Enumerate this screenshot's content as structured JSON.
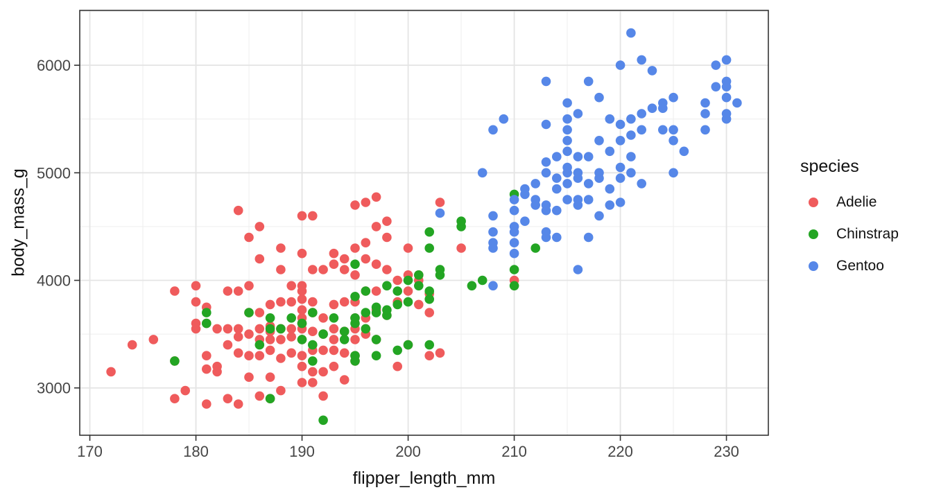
{
  "chart_data": {
    "type": "scatter",
    "xlabel": "flipper_length_mm",
    "ylabel": "body_mass_g",
    "xlim": [
      169.05,
      233.95
    ],
    "ylim": [
      2560,
      6510
    ],
    "x_ticks": [
      170,
      180,
      190,
      200,
      210,
      220,
      230
    ],
    "x_minor_ticks": [
      175,
      185,
      195,
      205,
      215,
      225
    ],
    "y_ticks": [
      3000,
      4000,
      5000,
      6000
    ],
    "y_minor_ticks": [
      3500,
      4500,
      5500,
      6500
    ],
    "grid": "on",
    "legend": {
      "title": "species",
      "position": "right"
    },
    "style": {
      "panel_background": "#ffffff",
      "panel_border": "#333333",
      "grid_major": "#e4e4e4",
      "grid_minor": "#f0f0f0",
      "tick_color": "#333333",
      "tick_label_color": "#454545",
      "axis_title_color": "#111111",
      "point_radius": 6.8
    },
    "series": [
      {
        "name": "Adelie",
        "color": "#EF5B5C",
        "points": [
          [
            172,
            3150
          ],
          [
            174,
            3400
          ],
          [
            176,
            3450
          ],
          [
            178,
            2900
          ],
          [
            178,
            3250
          ],
          [
            178,
            3900
          ],
          [
            179,
            2975
          ],
          [
            180,
            3550
          ],
          [
            180,
            3600
          ],
          [
            180,
            3800
          ],
          [
            180,
            3950
          ],
          [
            181,
            2850
          ],
          [
            181,
            3175
          ],
          [
            181,
            3300
          ],
          [
            181,
            3600
          ],
          [
            181,
            3750
          ],
          [
            182,
            3150
          ],
          [
            182,
            3200
          ],
          [
            182,
            3550
          ],
          [
            183,
            2900
          ],
          [
            183,
            3400
          ],
          [
            183,
            3550
          ],
          [
            183,
            3900
          ],
          [
            184,
            2850
          ],
          [
            184,
            3325
          ],
          [
            184,
            3475
          ],
          [
            184,
            3550
          ],
          [
            184,
            3900
          ],
          [
            184,
            4650
          ],
          [
            185,
            3100
          ],
          [
            185,
            3300
          ],
          [
            185,
            3500
          ],
          [
            185,
            3700
          ],
          [
            185,
            3950
          ],
          [
            185,
            4400
          ],
          [
            186,
            2925
          ],
          [
            186,
            3300
          ],
          [
            186,
            3450
          ],
          [
            186,
            3550
          ],
          [
            186,
            3700
          ],
          [
            186,
            4200
          ],
          [
            186,
            4500
          ],
          [
            187,
            2900
          ],
          [
            187,
            3100
          ],
          [
            187,
            3350
          ],
          [
            187,
            3450
          ],
          [
            187,
            3525
          ],
          [
            187,
            3575
          ],
          [
            187,
            3775
          ],
          [
            188,
            2975
          ],
          [
            188,
            3275
          ],
          [
            188,
            3450
          ],
          [
            188,
            3550
          ],
          [
            188,
            3800
          ],
          [
            188,
            4100
          ],
          [
            188,
            4300
          ],
          [
            189,
            3325
          ],
          [
            189,
            3475
          ],
          [
            189,
            3550
          ],
          [
            189,
            3800
          ],
          [
            189,
            3950
          ],
          [
            190,
            3050
          ],
          [
            190,
            3200
          ],
          [
            190,
            3300
          ],
          [
            190,
            3450
          ],
          [
            190,
            3550
          ],
          [
            190,
            3600
          ],
          [
            190,
            3650
          ],
          [
            190,
            3725
          ],
          [
            190,
            3825
          ],
          [
            190,
            3900
          ],
          [
            190,
            3950
          ],
          [
            190,
            4250
          ],
          [
            190,
            4600
          ],
          [
            191,
            3050
          ],
          [
            191,
            3150
          ],
          [
            191,
            3350
          ],
          [
            191,
            3525
          ],
          [
            191,
            3700
          ],
          [
            191,
            3800
          ],
          [
            191,
            4100
          ],
          [
            191,
            4600
          ],
          [
            192,
            2925
          ],
          [
            192,
            3150
          ],
          [
            192,
            3350
          ],
          [
            192,
            3500
          ],
          [
            192,
            3650
          ],
          [
            192,
            4100
          ],
          [
            193,
            3200
          ],
          [
            193,
            3350
          ],
          [
            193,
            3450
          ],
          [
            193,
            3550
          ],
          [
            193,
            3775
          ],
          [
            193,
            4150
          ],
          [
            193,
            4250
          ],
          [
            194,
            3075
          ],
          [
            194,
            3325
          ],
          [
            194,
            3525
          ],
          [
            194,
            3800
          ],
          [
            194,
            4100
          ],
          [
            194,
            4200
          ],
          [
            195,
            3250
          ],
          [
            195,
            3300
          ],
          [
            195,
            3450
          ],
          [
            195,
            3550
          ],
          [
            195,
            3650
          ],
          [
            195,
            3800
          ],
          [
            195,
            4050
          ],
          [
            195,
            4300
          ],
          [
            195,
            4700
          ],
          [
            196,
            3500
          ],
          [
            196,
            3550
          ],
          [
            196,
            3650
          ],
          [
            196,
            3900
          ],
          [
            196,
            4200
          ],
          [
            196,
            4350
          ],
          [
            196,
            4725
          ],
          [
            197,
            3450
          ],
          [
            197,
            3725
          ],
          [
            197,
            3900
          ],
          [
            197,
            4150
          ],
          [
            197,
            4500
          ],
          [
            197,
            4775
          ],
          [
            198,
            3675
          ],
          [
            198,
            4100
          ],
          [
            198,
            4400
          ],
          [
            198,
            4550
          ],
          [
            199,
            3200
          ],
          [
            199,
            3800
          ],
          [
            199,
            4000
          ],
          [
            200,
            3400
          ],
          [
            200,
            3900
          ],
          [
            200,
            4050
          ],
          [
            200,
            4300
          ],
          [
            201,
            3775
          ],
          [
            201,
            4000
          ],
          [
            201,
            4050
          ],
          [
            202,
            3300
          ],
          [
            202,
            3700
          ],
          [
            202,
            3875
          ],
          [
            203,
            3325
          ],
          [
            203,
            4725
          ],
          [
            205,
            4300
          ],
          [
            210,
            4000
          ]
        ]
      },
      {
        "name": "Chinstrap",
        "color": "#23A523",
        "points": [
          [
            178,
            3250
          ],
          [
            181,
            3600
          ],
          [
            181,
            3700
          ],
          [
            185,
            3700
          ],
          [
            186,
            3400
          ],
          [
            187,
            2900
          ],
          [
            187,
            3550
          ],
          [
            187,
            3650
          ],
          [
            188,
            3550
          ],
          [
            189,
            3650
          ],
          [
            190,
            3450
          ],
          [
            190,
            3600
          ],
          [
            191,
            3250
          ],
          [
            191,
            3400
          ],
          [
            191,
            3700
          ],
          [
            192,
            2700
          ],
          [
            192,
            3500
          ],
          [
            193,
            3650
          ],
          [
            194,
            3450
          ],
          [
            194,
            3525
          ],
          [
            195,
            3250
          ],
          [
            195,
            3300
          ],
          [
            195,
            3600
          ],
          [
            195,
            3650
          ],
          [
            195,
            3850
          ],
          [
            195,
            4150
          ],
          [
            196,
            3550
          ],
          [
            196,
            3700
          ],
          [
            196,
            3900
          ],
          [
            197,
            3300
          ],
          [
            197,
            3450
          ],
          [
            197,
            3700
          ],
          [
            197,
            3750
          ],
          [
            198,
            3675
          ],
          [
            198,
            3725
          ],
          [
            198,
            3950
          ],
          [
            199,
            3350
          ],
          [
            199,
            3775
          ],
          [
            199,
            3900
          ],
          [
            200,
            3400
          ],
          [
            200,
            3800
          ],
          [
            200,
            4000
          ],
          [
            201,
            3950
          ],
          [
            201,
            4050
          ],
          [
            202,
            3400
          ],
          [
            202,
            3825
          ],
          [
            202,
            3900
          ],
          [
            202,
            4300
          ],
          [
            202,
            4450
          ],
          [
            203,
            4050
          ],
          [
            203,
            4100
          ],
          [
            205,
            4500
          ],
          [
            205,
            4550
          ],
          [
            206,
            3950
          ],
          [
            207,
            4000
          ],
          [
            210,
            3950
          ],
          [
            210,
            4100
          ],
          [
            210,
            4800
          ],
          [
            212,
            4300
          ]
        ]
      },
      {
        "name": "Gentoo",
        "color": "#5687E8",
        "points": [
          [
            203,
            4625
          ],
          [
            207,
            5000
          ],
          [
            208,
            3950
          ],
          [
            208,
            4300
          ],
          [
            208,
            4350
          ],
          [
            208,
            4450
          ],
          [
            208,
            4600
          ],
          [
            208,
            5400
          ],
          [
            209,
            5500
          ],
          [
            210,
            4250
          ],
          [
            210,
            4350
          ],
          [
            210,
            4450
          ],
          [
            210,
            4500
          ],
          [
            210,
            4650
          ],
          [
            210,
            4750
          ],
          [
            211,
            4550
          ],
          [
            211,
            4800
          ],
          [
            211,
            4850
          ],
          [
            212,
            4700
          ],
          [
            212,
            4750
          ],
          [
            212,
            4900
          ],
          [
            213,
            4400
          ],
          [
            213,
            4450
          ],
          [
            213,
            4650
          ],
          [
            213,
            4700
          ],
          [
            213,
            5000
          ],
          [
            213,
            5100
          ],
          [
            213,
            5450
          ],
          [
            213,
            5850
          ],
          [
            214,
            4400
          ],
          [
            214,
            4650
          ],
          [
            214,
            4850
          ],
          [
            214,
            4950
          ],
          [
            214,
            5150
          ],
          [
            215,
            4750
          ],
          [
            215,
            4900
          ],
          [
            215,
            5000
          ],
          [
            215,
            5050
          ],
          [
            215,
            5200
          ],
          [
            215,
            5300
          ],
          [
            215,
            5400
          ],
          [
            215,
            5500
          ],
          [
            215,
            5650
          ],
          [
            216,
            4100
          ],
          [
            216,
            4700
          ],
          [
            216,
            4750
          ],
          [
            216,
            4950
          ],
          [
            216,
            5000
          ],
          [
            216,
            5150
          ],
          [
            216,
            5550
          ],
          [
            217,
            4400
          ],
          [
            217,
            4750
          ],
          [
            217,
            4900
          ],
          [
            217,
            5150
          ],
          [
            217,
            5850
          ],
          [
            218,
            4600
          ],
          [
            218,
            4950
          ],
          [
            218,
            5000
          ],
          [
            218,
            5300
          ],
          [
            218,
            5700
          ],
          [
            219,
            4700
          ],
          [
            219,
            4850
          ],
          [
            219,
            5200
          ],
          [
            219,
            5500
          ],
          [
            220,
            4725
          ],
          [
            220,
            4950
          ],
          [
            220,
            5050
          ],
          [
            220,
            5300
          ],
          [
            220,
            5450
          ],
          [
            220,
            6000
          ],
          [
            221,
            5000
          ],
          [
            221,
            5150
          ],
          [
            221,
            5350
          ],
          [
            221,
            5500
          ],
          [
            221,
            6300
          ],
          [
            222,
            4900
          ],
          [
            222,
            5400
          ],
          [
            222,
            5550
          ],
          [
            222,
            6050
          ],
          [
            223,
            5600
          ],
          [
            223,
            5950
          ],
          [
            224,
            5400
          ],
          [
            224,
            5600
          ],
          [
            224,
            5650
          ],
          [
            225,
            5000
          ],
          [
            225,
            5300
          ],
          [
            225,
            5400
          ],
          [
            225,
            5700
          ],
          [
            226,
            5200
          ],
          [
            228,
            5400
          ],
          [
            228,
            5550
          ],
          [
            228,
            5650
          ],
          [
            229,
            5800
          ],
          [
            229,
            6000
          ],
          [
            230,
            5500
          ],
          [
            230,
            5550
          ],
          [
            230,
            5700
          ],
          [
            230,
            5800
          ],
          [
            230,
            5850
          ],
          [
            230,
            6050
          ],
          [
            231,
            5650
          ]
        ]
      }
    ]
  }
}
